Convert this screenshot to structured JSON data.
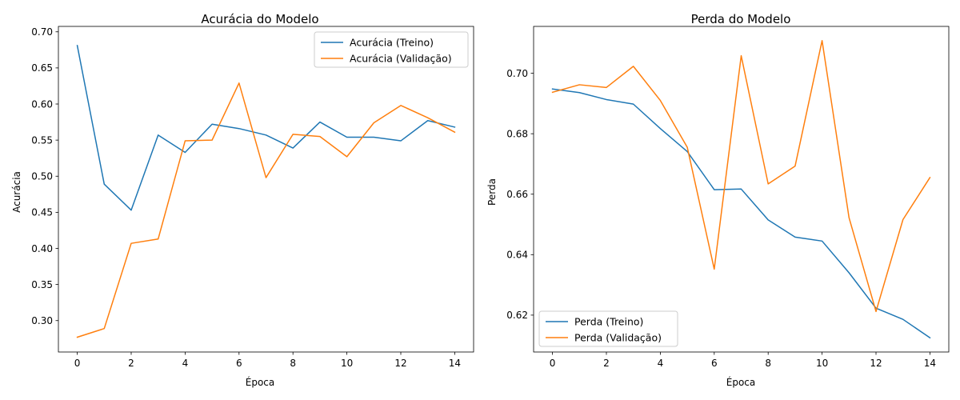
{
  "chart_data": [
    {
      "type": "line",
      "title": "Acurácia do Modelo",
      "xlabel": "Época",
      "ylabel": "Acurácia",
      "xlim": [
        -0.7,
        14.7
      ],
      "ylim": [
        0.2565,
        0.7075
      ],
      "xticks": [
        0,
        2,
        4,
        6,
        8,
        10,
        12,
        14
      ],
      "xtick_labels": [
        "0",
        "2",
        "4",
        "6",
        "8",
        "10",
        "12",
        "14"
      ],
      "yticks": [
        0.3,
        0.35,
        0.4,
        0.45,
        0.5,
        0.55,
        0.6,
        0.65,
        0.7
      ],
      "ytick_labels": [
        "0.30",
        "0.35",
        "0.40",
        "0.45",
        "0.50",
        "0.55",
        "0.60",
        "0.65",
        "0.70"
      ],
      "legend_position": "upper right",
      "grid": false,
      "x": [
        0,
        1,
        2,
        3,
        4,
        5,
        6,
        7,
        8,
        9,
        10,
        11,
        12,
        13,
        14
      ],
      "series": [
        {
          "name": "Acurácia (Treino)",
          "color": "#1f77b4",
          "values": [
            0.681,
            0.489,
            0.453,
            0.557,
            0.533,
            0.572,
            0.566,
            0.557,
            0.539,
            0.575,
            0.554,
            0.554,
            0.549,
            0.577,
            0.568
          ]
        },
        {
          "name": "Acurácia (Validação)",
          "color": "#ff7f0e",
          "values": [
            0.277,
            0.289,
            0.407,
            0.413,
            0.549,
            0.55,
            0.629,
            0.498,
            0.558,
            0.555,
            0.527,
            0.574,
            0.598,
            0.581,
            0.561
          ]
        }
      ]
    },
    {
      "type": "line",
      "title": "Perda do Modelo",
      "xlabel": "Época",
      "ylabel": "Perda",
      "xlim": [
        -0.7,
        14.7
      ],
      "ylim": [
        0.6078,
        0.7155
      ],
      "xticks": [
        0,
        2,
        4,
        6,
        8,
        10,
        12,
        14
      ],
      "xtick_labels": [
        "0",
        "2",
        "4",
        "6",
        "8",
        "10",
        "12",
        "14"
      ],
      "yticks": [
        0.62,
        0.64,
        0.66,
        0.68,
        0.7
      ],
      "ytick_labels": [
        "0.62",
        "0.64",
        "0.66",
        "0.68",
        "0.70"
      ],
      "legend_position": "lower left",
      "grid": false,
      "x": [
        0,
        1,
        2,
        3,
        4,
        5,
        6,
        7,
        8,
        9,
        10,
        11,
        12,
        13,
        14
      ],
      "series": [
        {
          "name": "Perda (Treino)",
          "color": "#1f77b4",
          "values": [
            0.6948,
            0.6936,
            0.6913,
            0.6898,
            0.6817,
            0.6741,
            0.6615,
            0.6617,
            0.6515,
            0.6458,
            0.6445,
            0.634,
            0.6223,
            0.6186,
            0.6125
          ]
        },
        {
          "name": "Perda (Validação)",
          "color": "#ff7f0e",
          "values": [
            0.6937,
            0.6962,
            0.6953,
            0.7023,
            0.691,
            0.6755,
            0.6352,
            0.7058,
            0.6634,
            0.6693,
            0.7108,
            0.6522,
            0.6212,
            0.6516,
            0.6655
          ]
        }
      ]
    }
  ]
}
